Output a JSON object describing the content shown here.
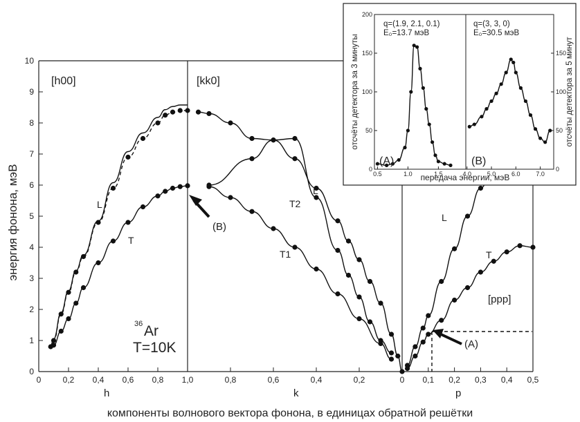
{
  "chart_data": [
    {
      "type": "scatter",
      "ylabel": "энергия фонона, мэВ",
      "xlabel": "компоненты волнового вектора фонона, в единицах обратной решётки",
      "ylim": [
        0,
        10
      ],
      "yticks": [
        "0",
        "1",
        "2",
        "3",
        "4",
        "5",
        "6",
        "7",
        "8",
        "9",
        "10"
      ],
      "sections": [
        {
          "label": "[h00]",
          "axis_name": "h",
          "range": [
            0,
            1.0
          ],
          "ticks": [
            "0",
            "0,2",
            "0,4",
            "0,6",
            "0,8",
            "1,0"
          ]
        },
        {
          "label": "[kk0]",
          "axis_name": "k",
          "range": [
            1.0,
            0
          ],
          "ticks": [
            "0,8",
            "0,6",
            "0,4",
            "0,2",
            "0"
          ]
        },
        {
          "label": "[ppp]",
          "axis_name": "p",
          "range": [
            0,
            0.5
          ],
          "ticks": [
            "0,1",
            "0,2",
            "0,3",
            "0,4",
            "0,5"
          ]
        }
      ],
      "sample_label": "Ar",
      "sample_isotope": "36",
      "temperature_label": "T=10K",
      "branch_labels": [
        "L",
        "T",
        "L",
        "T1",
        "T2",
        "L",
        "T"
      ],
      "annotations": [
        "(B)",
        "(A)"
      ],
      "series": [
        {
          "name": "L",
          "section": "[h00]",
          "points": [
            [
              0.08,
              0.8
            ],
            [
              0.1,
              1.0
            ],
            [
              0.15,
              1.85
            ],
            [
              0.2,
              2.55
            ],
            [
              0.25,
              3.2
            ],
            [
              0.3,
              3.7
            ],
            [
              0.4,
              4.8
            ],
            [
              0.5,
              5.9
            ],
            [
              0.6,
              6.9
            ],
            [
              0.7,
              7.5
            ],
            [
              0.8,
              8.0
            ],
            [
              0.85,
              8.25
            ],
            [
              0.9,
              8.35
            ],
            [
              0.95,
              8.4
            ],
            [
              1.0,
              8.4
            ]
          ]
        },
        {
          "name": "T",
          "section": "[h00]",
          "points": [
            [
              0.1,
              0.85
            ],
            [
              0.15,
              1.3
            ],
            [
              0.2,
              1.7
            ],
            [
              0.25,
              2.2
            ],
            [
              0.3,
              2.7
            ],
            [
              0.4,
              3.5
            ],
            [
              0.5,
              4.2
            ],
            [
              0.6,
              4.8
            ],
            [
              0.7,
              5.3
            ],
            [
              0.8,
              5.65
            ],
            [
              0.85,
              5.8
            ],
            [
              0.9,
              5.9
            ],
            [
              0.95,
              5.95
            ],
            [
              1.0,
              5.98
            ]
          ]
        },
        {
          "name": "L",
          "section": "[kk0]",
          "points": [
            [
              0.95,
              8.35
            ],
            [
              0.9,
              8.3
            ],
            [
              0.8,
              8.0
            ],
            [
              0.7,
              7.5
            ],
            [
              0.6,
              7.45
            ],
            [
              0.5,
              6.85
            ],
            [
              0.4,
              5.9
            ],
            [
              0.3,
              4.85
            ],
            [
              0.25,
              4.2
            ],
            [
              0.2,
              3.6
            ],
            [
              0.15,
              2.9
            ],
            [
              0.1,
              2.2
            ],
            [
              0.05,
              1.2
            ],
            [
              0.02,
              0.5
            ],
            [
              0.0,
              0.0
            ]
          ]
        },
        {
          "name": "T1",
          "section": "[kk0]",
          "points": [
            [
              0.9,
              5.95
            ],
            [
              0.8,
              5.6
            ],
            [
              0.7,
              5.15
            ],
            [
              0.6,
              4.6
            ],
            [
              0.5,
              4.0
            ],
            [
              0.4,
              3.3
            ],
            [
              0.3,
              2.5
            ],
            [
              0.2,
              1.7
            ],
            [
              0.1,
              0.9
            ],
            [
              0.05,
              0.4
            ]
          ]
        },
        {
          "name": "T2",
          "section": "[kk0]",
          "points": [
            [
              0.9,
              6.0
            ],
            [
              0.7,
              6.85
            ],
            [
              0.6,
              7.45
            ],
            [
              0.5,
              7.5
            ],
            [
              0.4,
              5.6
            ],
            [
              0.3,
              3.9
            ],
            [
              0.25,
              3.1
            ],
            [
              0.2,
              2.4
            ],
            [
              0.15,
              1.6
            ],
            [
              0.1,
              1.0
            ],
            [
              0.05,
              0.6
            ]
          ]
        },
        {
          "name": "L",
          "section": "[ppp]",
          "points": [
            [
              0.02,
              0.2
            ],
            [
              0.05,
              0.8
            ],
            [
              0.08,
              1.4
            ],
            [
              0.1,
              1.8
            ],
            [
              0.15,
              2.9
            ],
            [
              0.2,
              3.95
            ],
            [
              0.25,
              5.0
            ],
            [
              0.3,
              5.9
            ],
            [
              0.35,
              6.7
            ]
          ]
        },
        {
          "name": "T",
          "section": "[ppp]",
          "points": [
            [
              0.02,
              0.1
            ],
            [
              0.05,
              0.5
            ],
            [
              0.08,
              0.95
            ],
            [
              0.1,
              1.2
            ],
            [
              0.15,
              1.65
            ],
            [
              0.2,
              2.3
            ],
            [
              0.25,
              2.7
            ],
            [
              0.3,
              3.2
            ],
            [
              0.35,
              3.55
            ],
            [
              0.4,
              3.85
            ],
            [
              0.45,
              4.05
            ],
            [
              0.5,
              4.0
            ]
          ]
        }
      ]
    },
    {
      "type": "scatter",
      "label": "(A)",
      "q_text": "q=(1.9, 2.1, 0.1)",
      "energy_text": "E₀=13.7 мэВ",
      "ylabel": "отсчёты детектора за 3 минуты",
      "yticks": [
        "0",
        "50",
        "100",
        "150",
        "200"
      ],
      "xticks": [
        "0.5",
        "1.0",
        "1.5"
      ],
      "ylim": [
        0,
        200
      ],
      "xlim": [
        0.45,
        1.95
      ],
      "points": [
        [
          0.5,
          7
        ],
        [
          0.65,
          5
        ],
        [
          0.75,
          7
        ],
        [
          0.85,
          12
        ],
        [
          0.95,
          28
        ],
        [
          1.0,
          50
        ],
        [
          1.05,
          100
        ],
        [
          1.1,
          160
        ],
        [
          1.15,
          158
        ],
        [
          1.2,
          130
        ],
        [
          1.25,
          105
        ],
        [
          1.3,
          78
        ],
        [
          1.35,
          58
        ],
        [
          1.4,
          35
        ],
        [
          1.45,
          18
        ],
        [
          1.5,
          10
        ],
        [
          1.6,
          7
        ],
        [
          1.7,
          5
        ]
      ]
    },
    {
      "type": "scatter",
      "label": "(B)",
      "q_text": "q=(3, 3, 0)",
      "energy_text": "E₀=30.5 мэВ",
      "ylabel": "отсчёты детектора за 5 минут",
      "yticks": [
        "0",
        "50",
        "100",
        "150"
      ],
      "xticks": [
        "4.0",
        "5.0",
        "6.0",
        "7.0"
      ],
      "ylim": [
        0,
        200
      ],
      "xlim": [
        3.95,
        7.55
      ],
      "points": [
        [
          4.1,
          55
        ],
        [
          4.3,
          58
        ],
        [
          4.6,
          68
        ],
        [
          4.8,
          78
        ],
        [
          5.0,
          88
        ],
        [
          5.2,
          98
        ],
        [
          5.4,
          110
        ],
        [
          5.6,
          125
        ],
        [
          5.8,
          142
        ],
        [
          5.9,
          138
        ],
        [
          6.0,
          125
        ],
        [
          6.2,
          105
        ],
        [
          6.4,
          88
        ],
        [
          6.6,
          70
        ],
        [
          6.8,
          52
        ],
        [
          7.0,
          40
        ],
        [
          7.2,
          35
        ],
        [
          7.4,
          50
        ]
      ]
    }
  ],
  "inset": {
    "xlabel": "передача энергии, мэВ"
  }
}
